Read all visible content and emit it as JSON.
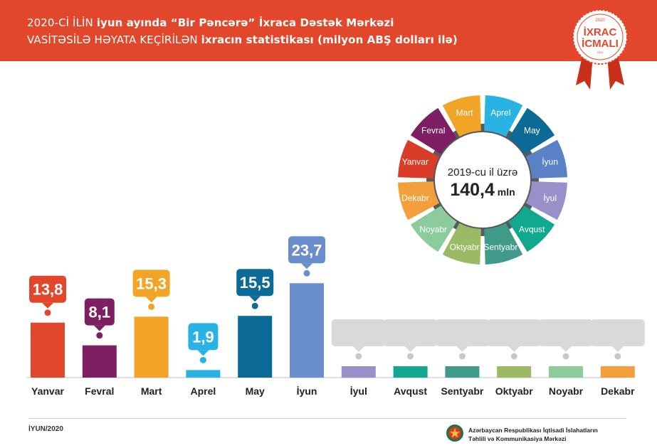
{
  "header": {
    "line1_a": "2020-Cİ İLİN ",
    "line1_b": "iyun ayında “Bir Pəncərə” İxraca Dəstək Mərkəzi",
    "line2_a": "VASİTƏSİLƏ HƏYATA KEÇİRİLƏN ",
    "line2_b": "ixracın statistikası (milyon ABŞ dolları ilə)",
    "background_color": "#e2472c"
  },
  "badge": {
    "year": "2020",
    "line1": "İXRAC",
    "line2": "İCMALI",
    "subtext": "2020"
  },
  "donut": {
    "center_line1": "2019-cu il üzrə",
    "center_value": "140,4",
    "center_unit": "mln",
    "segments": [
      {
        "label": "Aprel",
        "color": "#29b3e5"
      },
      {
        "label": "May",
        "color": "#0b6b96"
      },
      {
        "label": "İyun",
        "color": "#5b82c6"
      },
      {
        "label": "İyul",
        "color": "#9b8fc9"
      },
      {
        "label": "Avqust",
        "color": "#12a890"
      },
      {
        "label": "Sentyabr",
        "color": "#3f9a8a"
      },
      {
        "label": "Oktyabr",
        "color": "#9bba66"
      },
      {
        "label": "Noyabr",
        "color": "#8ccc9c"
      },
      {
        "label": "Dekabr",
        "color": "#f3a03c"
      },
      {
        "label": "Yanvar",
        "color": "#d93d2a"
      },
      {
        "label": "Fevral",
        "color": "#7d1f62"
      },
      {
        "label": "Mart",
        "color": "#f1a425"
      }
    ]
  },
  "chart_data": {
    "type": "bar",
    "title": "",
    "xlabel": "",
    "ylabel": "",
    "categories": [
      "Yanvar",
      "Fevral",
      "Mart",
      "Aprel",
      "May",
      "İyun",
      "İyul",
      "Avqust",
      "Sentyabr",
      "Oktyabr",
      "Noyabr",
      "Dekabr"
    ],
    "values": [
      13.8,
      8.1,
      15.3,
      1.9,
      15.5,
      23.7,
      null,
      null,
      null,
      null,
      null,
      null
    ],
    "value_labels": [
      "13,8",
      "8,1",
      "15,3",
      "1,9",
      "15,5",
      "23,7",
      "",
      "",
      "",
      "",
      "",
      ""
    ],
    "colors": [
      "#e2472c",
      "#7d1f62",
      "#f1a425",
      "#29b3e5",
      "#0b6b96",
      "#6a8dcc",
      "#9b8fc9",
      "#12a890",
      "#3f9a8a",
      "#9bba66",
      "#8ccc9c",
      "#f3a03c"
    ],
    "placeholder_color": "#d9d9d9"
  },
  "footer": {
    "date": "İYUN/2020",
    "org_line1": "Azərbaycan Respublikası İqtisadi İslahatların",
    "org_line2": "Təhlili və Kommunikasiya Mərkəzi"
  }
}
